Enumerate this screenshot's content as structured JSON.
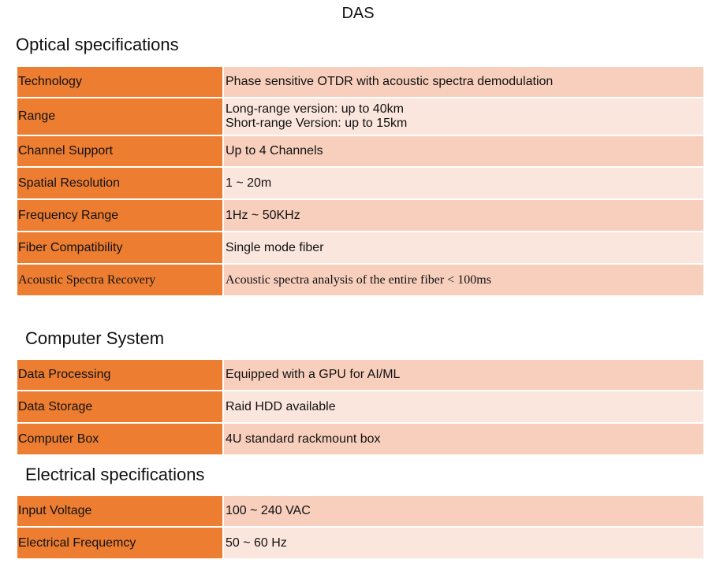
{
  "title": "DAS",
  "sections": [
    {
      "heading": "Optical specifications",
      "rows": [
        [
          "Technology",
          "Phase sensitive OTDR with acoustic spectra demodulation"
        ],
        [
          "Range",
          [
            "Long-range version: up to 40km",
            "Short-range Version: up to 15km"
          ]
        ],
        [
          "Channel Support",
          "Up to 4 Channels"
        ],
        [
          "Spatial Resolution",
          "1 ~ 20m"
        ],
        [
          "Frequency Range",
          "1Hz ~ 50KHz"
        ],
        [
          "Fiber Compatibility",
          "Single mode fiber"
        ],
        [
          "Acoustic Spectra Recovery",
          "Acoustic spectra analysis of the entire fiber < 100ms"
        ]
      ]
    },
    {
      "heading": "Computer System",
      "rows": [
        [
          "Data Processing",
          "Equipped with a GPU for AI/ML"
        ],
        [
          "Data Storage",
          "Raid HDD available"
        ],
        [
          "Computer Box",
          "4U standard rackmount box"
        ]
      ]
    },
    {
      "heading": "Electrical specifications",
      "rows": [
        [
          "Input Voltage",
          "100 ~ 240 VAC"
        ],
        [
          "Electrical Frequemcy",
          "50 ~ 60 Hz"
        ]
      ]
    }
  ]
}
